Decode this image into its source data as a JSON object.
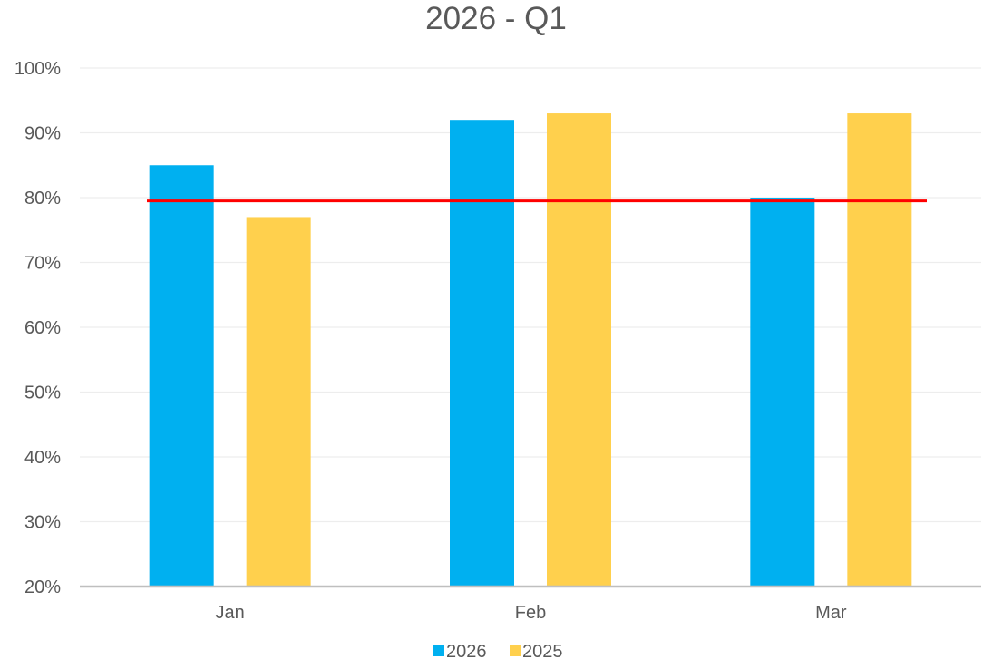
{
  "chart_data": {
    "type": "bar",
    "title": "2026 - Q1",
    "xlabel": "",
    "ylabel": "",
    "categories": [
      "Jan",
      "Feb",
      "Mar"
    ],
    "series": [
      {
        "name": "2026",
        "values": [
          85,
          92,
          80
        ],
        "color": "#00B0F0"
      },
      {
        "name": "2025",
        "values": [
          77,
          93,
          93
        ],
        "color": "#FFD04D"
      }
    ],
    "y_ticks": [
      "20%",
      "30%",
      "40%",
      "50%",
      "60%",
      "70%",
      "80%",
      "90%",
      "100%"
    ],
    "ylim": [
      20,
      100
    ],
    "target_line": {
      "value": 79.5,
      "color": "#FF0000"
    },
    "grid": true,
    "legend_position": "bottom",
    "gridline_color": "#EDEDED",
    "axis_color": "#BFBFBF"
  }
}
